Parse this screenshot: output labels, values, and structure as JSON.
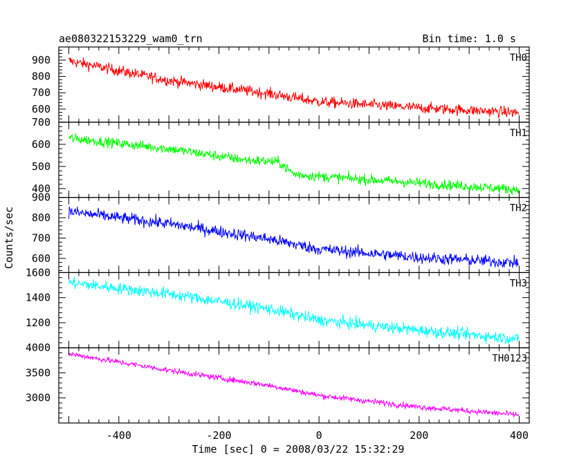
{
  "title": "ae080322153229_wam0_trn",
  "bin_time": "Bin time: 1.0 s",
  "chart_data": {
    "type": "line",
    "title": "ae080322153229_wam0_trn",
    "xlabel": "Time [sec] 0 = 2008/03/22 15:32:29",
    "ylabel": "Counts/sec",
    "xlim": [
      -520,
      420
    ],
    "xticks": [
      -400,
      -200,
      0,
      200,
      400
    ],
    "x_range": [
      -500,
      399
    ],
    "bin_time_s": 1.0,
    "grid": false,
    "legend": "none",
    "panels": [
      {
        "name": "TH0",
        "color": "#ff0000",
        "ylim": [
          520,
          980
        ],
        "yticks": [
          600,
          700,
          800,
          900
        ],
        "trend": [
          [
            -500,
            895
          ],
          [
            -300,
            775
          ],
          [
            -100,
            695
          ],
          [
            0,
            645
          ],
          [
            200,
            608
          ],
          [
            400,
            578
          ]
        ],
        "noise": 32
      },
      {
        "name": "TH1",
        "color": "#00ff00",
        "ylim": [
          360,
          700
        ],
        "yticks": [
          400,
          500,
          600,
          700
        ],
        "trend": [
          [
            -500,
            628
          ],
          [
            -300,
            580
          ],
          [
            -150,
            530
          ],
          [
            -80,
            520
          ],
          [
            -50,
            465
          ],
          [
            0,
            455
          ],
          [
            200,
            425
          ],
          [
            400,
            395
          ]
        ],
        "noise": 22
      },
      {
        "name": "TH2",
        "color": "#0000ff",
        "ylim": [
          530,
          900
        ],
        "yticks": [
          600,
          700,
          800,
          900
        ],
        "trend": [
          [
            -500,
            830
          ],
          [
            -300,
            770
          ],
          [
            -100,
            695
          ],
          [
            0,
            645
          ],
          [
            200,
            605
          ],
          [
            400,
            578
          ]
        ],
        "noise": 28
      },
      {
        "name": "TH3",
        "color": "#00ffff",
        "ylim": [
          1000,
          1600
        ],
        "yticks": [
          1200,
          1400,
          1600
        ],
        "trend": [
          [
            -500,
            1520
          ],
          [
            -300,
            1430
          ],
          [
            -100,
            1310
          ],
          [
            0,
            1220
          ],
          [
            200,
            1140
          ],
          [
            400,
            1070
          ]
        ],
        "noise": 45
      },
      {
        "name": "TH0123",
        "color": "#ff00ff",
        "ylim": [
          2500,
          4000
        ],
        "yticks": [
          3000,
          3500,
          4000
        ],
        "trend": [
          [
            -500,
            3880
          ],
          [
            -300,
            3550
          ],
          [
            -100,
            3250
          ],
          [
            0,
            3050
          ],
          [
            200,
            2820
          ],
          [
            400,
            2660
          ]
        ],
        "noise": 55
      }
    ]
  }
}
